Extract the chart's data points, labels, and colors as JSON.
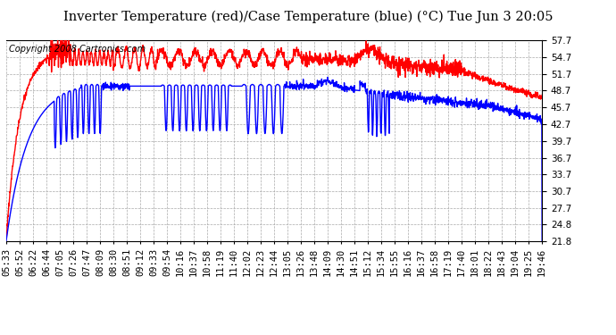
{
  "title": "Inverter Temperature (red)/Case Temperature (blue) (°C) Tue Jun 3 20:05",
  "copyright": "Copyright 2008 Cartronics.com",
  "yticks": [
    21.8,
    24.8,
    27.7,
    30.7,
    33.7,
    36.7,
    39.7,
    42.7,
    45.7,
    48.7,
    51.7,
    54.7,
    57.7
  ],
  "ymin": 21.8,
  "ymax": 57.7,
  "background_color": "#ffffff",
  "plot_bg_color": "#ffffff",
  "grid_color": "#aaaaaa",
  "red_color": "#ff0000",
  "blue_color": "#0000ff",
  "xtick_labels": [
    "05:33",
    "05:52",
    "06:22",
    "06:44",
    "07:05",
    "07:26",
    "07:47",
    "08:09",
    "08:30",
    "08:51",
    "09:12",
    "09:33",
    "09:54",
    "10:16",
    "10:37",
    "10:58",
    "11:19",
    "11:40",
    "12:02",
    "12:23",
    "12:44",
    "13:05",
    "13:26",
    "13:48",
    "14:09",
    "14:30",
    "14:51",
    "15:12",
    "15:34",
    "15:55",
    "16:16",
    "16:37",
    "16:58",
    "17:19",
    "17:40",
    "18:01",
    "18:22",
    "18:43",
    "19:04",
    "19:25",
    "19:46"
  ],
  "title_fontsize": 10.5,
  "copyright_fontsize": 7,
  "tick_fontsize": 7.5,
  "linewidth": 1.0
}
